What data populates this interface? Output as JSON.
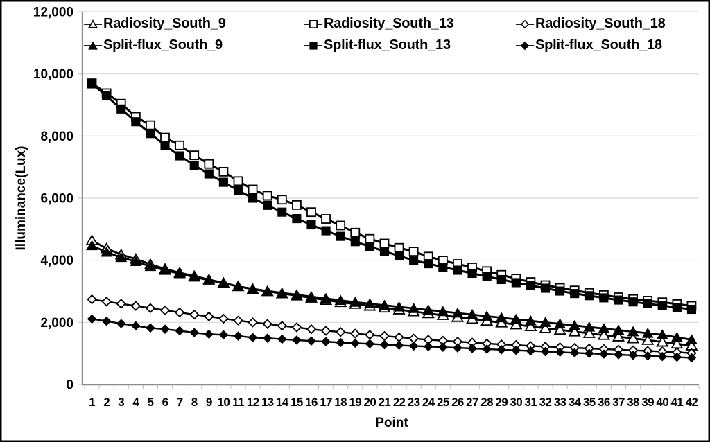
{
  "chart_data": {
    "type": "line",
    "title": "",
    "xlabel": "Point",
    "ylabel": "Illuminance(Lux)",
    "x": [
      1,
      2,
      3,
      4,
      5,
      6,
      7,
      8,
      9,
      10,
      11,
      12,
      13,
      14,
      15,
      16,
      17,
      18,
      19,
      20,
      21,
      22,
      23,
      24,
      25,
      26,
      27,
      28,
      29,
      30,
      31,
      32,
      33,
      34,
      35,
      36,
      37,
      38,
      39,
      40,
      41,
      42
    ],
    "ylim": [
      0,
      12000
    ],
    "ytick_step": 2000,
    "ytick_labels": [
      "0",
      "2,000",
      "4,000",
      "6,000",
      "8,000",
      "10,000",
      "12,000"
    ],
    "grid": "horizontal gridlines only",
    "legend_position": "inside top, 2 rows x 3 columns",
    "series": [
      {
        "name": "Radiosity_South_9",
        "marker": "triangle-open",
        "values": [
          4640,
          4380,
          4180,
          4040,
          3870,
          3720,
          3600,
          3490,
          3380,
          3270,
          3160,
          3070,
          3000,
          2930,
          2860,
          2790,
          2720,
          2650,
          2590,
          2530,
          2470,
          2410,
          2350,
          2290,
          2230,
          2170,
          2110,
          2050,
          1990,
          1930,
          1870,
          1810,
          1760,
          1700,
          1650,
          1590,
          1540,
          1480,
          1430,
          1370,
          1310,
          1250
        ]
      },
      {
        "name": "Radiosity_South_13",
        "marker": "square-open",
        "values": [
          9700,
          9380,
          9040,
          8620,
          8350,
          7950,
          7700,
          7380,
          7100,
          6850,
          6550,
          6280,
          6080,
          5950,
          5780,
          5550,
          5330,
          5120,
          4890,
          4690,
          4540,
          4400,
          4280,
          4120,
          3990,
          3880,
          3770,
          3650,
          3530,
          3410,
          3300,
          3200,
          3110,
          3030,
          2950,
          2880,
          2810,
          2750,
          2700,
          2650,
          2590,
          2530
        ]
      },
      {
        "name": "Radiosity_South_18",
        "marker": "diamond-open",
        "values": [
          2740,
          2670,
          2600,
          2530,
          2460,
          2390,
          2320,
          2250,
          2190,
          2120,
          2060,
          2000,
          1950,
          1890,
          1840,
          1780,
          1730,
          1690,
          1640,
          1600,
          1560,
          1520,
          1480,
          1440,
          1410,
          1380,
          1350,
          1320,
          1290,
          1270,
          1240,
          1220,
          1200,
          1180,
          1160,
          1140,
          1120,
          1100,
          1080,
          1060,
          1040,
          1010
        ]
      },
      {
        "name": "Split-flux_South_9",
        "marker": "triangle-filled",
        "values": [
          4470,
          4260,
          4090,
          3960,
          3800,
          3680,
          3570,
          3460,
          3360,
          3260,
          3160,
          3080,
          3010,
          2950,
          2890,
          2830,
          2770,
          2710,
          2650,
          2600,
          2550,
          2500,
          2450,
          2400,
          2350,
          2300,
          2250,
          2200,
          2150,
          2100,
          2050,
          2000,
          1950,
          1900,
          1850,
          1800,
          1750,
          1700,
          1650,
          1600,
          1520,
          1440
        ]
      },
      {
        "name": "Split-flux_South_13",
        "marker": "square-filled",
        "values": [
          9680,
          9290,
          8870,
          8460,
          8080,
          7700,
          7360,
          7060,
          6780,
          6510,
          6250,
          6000,
          5770,
          5550,
          5340,
          5140,
          4950,
          4770,
          4600,
          4440,
          4290,
          4140,
          4000,
          3890,
          3780,
          3680,
          3580,
          3480,
          3380,
          3280,
          3190,
          3100,
          3010,
          2930,
          2860,
          2790,
          2720,
          2660,
          2600,
          2540,
          2480,
          2420
        ]
      },
      {
        "name": "Split-flux_South_18",
        "marker": "diamond-filled",
        "values": [
          2110,
          2040,
          1960,
          1890,
          1820,
          1780,
          1730,
          1670,
          1620,
          1600,
          1560,
          1510,
          1490,
          1460,
          1430,
          1400,
          1380,
          1350,
          1330,
          1310,
          1280,
          1260,
          1240,
          1220,
          1200,
          1180,
          1160,
          1140,
          1120,
          1100,
          1080,
          1060,
          1040,
          1020,
          1000,
          980,
          960,
          940,
          920,
          900,
          880,
          860
        ]
      }
    ],
    "colors": {
      "series": "#000000",
      "background": "#ffffff",
      "frame_border": "#000000",
      "gridline": "#d9d9d9",
      "axis_line": "#8c8c8c",
      "tick": "#bfbfbf",
      "text": "#000000"
    }
  }
}
